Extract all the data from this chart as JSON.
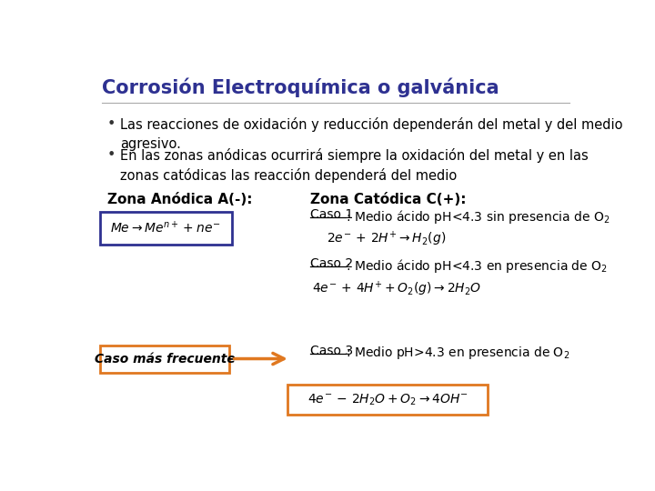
{
  "title": "Corrosión Electroquímica o galvánica",
  "title_color": "#2E3191",
  "title_fontsize": 15,
  "bg_color": "#FFFFFF",
  "bullet1": "Las reacciones de oxidación y reducción dependerán del metal y del medio\nagresivo.",
  "bullet2": "En las zonas anódicas ocurrirá siempre la oxidación del metal y en las\nzonas catódicas las reacción dependerá del medio",
  "bullet_fontsize": 10.5,
  "bullet_color": "#000000",
  "zone_anodica": "Zona Anódica A(-):",
  "zone_catodica": "Zona Catódica C(+):",
  "zone_fontsize": 11,
  "anodic_eq": "$Me \\rightarrow Me^{n+} + ne^{-}$",
  "anodic_box_color": "#2E3191",
  "caso1_label": "Caso 1",
  "caso1_text": ": Medio ácido pH<4.3 sin presencia de O",
  "caso1_eq": "$2e^{-}\\, +\\, 2H^{+} \\rightarrow H_2(g)$",
  "caso2_label": "Caso 2",
  "caso2_text": ": Medio ácido pH<4.3 en presencia de O",
  "caso2_eq": "$4e^{-}\\, +\\, 4H^{+} + O_2(g) \\rightarrow 2H_2O$",
  "caso3_label": "Caso 3",
  "caso3_text": ": Medio pH>4.3 en presencia de O",
  "caso3_eq": "$4e^{-}\\, -\\, 2H_2O + O_2 \\rightarrow 4OH^{-}$",
  "caso3_box_color": "#E07820",
  "caso_mas_frecuente": "Caso más frecuente",
  "cmf_box_color": "#E07820",
  "arrow_color": "#E07820",
  "eq_fontsize": 10,
  "caso_fontsize": 10
}
